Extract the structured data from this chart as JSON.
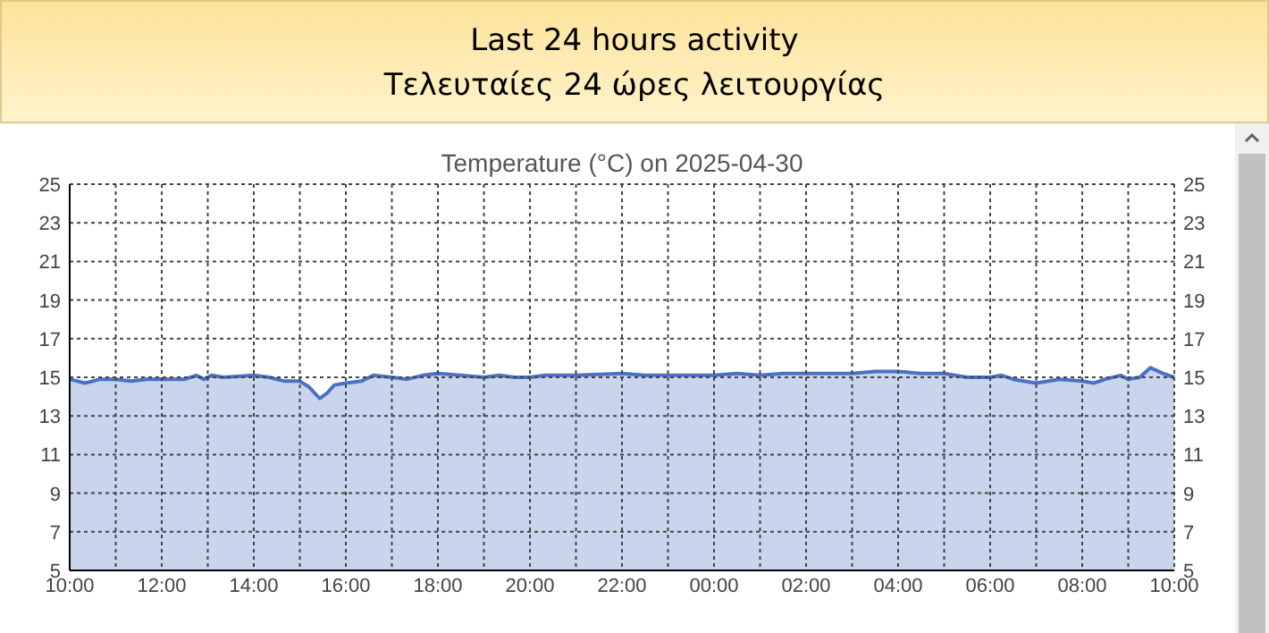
{
  "chart_data": {
    "type": "area",
    "title": "Last 24 hours activity",
    "subtitle": "Τελευταίες 24 ώρες λειτουργίας",
    "annotations": [
      "Temperature (°C) on 2025-04-30"
    ],
    "x": [
      "2025-04-29T10:00",
      "2025-04-29T10:20",
      "2025-04-29T10:40",
      "2025-04-29T11:00",
      "2025-04-29T11:20",
      "2025-04-29T11:40",
      "2025-04-29T12:00",
      "2025-04-29T12:30",
      "2025-04-29T12:45",
      "2025-04-29T12:55",
      "2025-04-29T13:05",
      "2025-04-29T13:20",
      "2025-04-29T14:00",
      "2025-04-29T14:20",
      "2025-04-29T14:40",
      "2025-04-29T15:00",
      "2025-04-29T15:12",
      "2025-04-29T15:26",
      "2025-04-29T15:36",
      "2025-04-29T15:45",
      "2025-04-29T16:00",
      "2025-04-29T16:20",
      "2025-04-29T16:36",
      "2025-04-29T17:00",
      "2025-04-29T17:20",
      "2025-04-29T17:40",
      "2025-04-29T18:00",
      "2025-04-29T18:30",
      "2025-04-29T19:00",
      "2025-04-29T19:20",
      "2025-04-29T19:40",
      "2025-04-29T20:00",
      "2025-04-29T20:20",
      "2025-04-29T21:00",
      "2025-04-29T22:00",
      "2025-04-29T22:30",
      "2025-04-29T23:00",
      "2025-04-29T23:30",
      "2025-04-30T00:00",
      "2025-04-30T00:30",
      "2025-04-30T01:00",
      "2025-04-30T01:30",
      "2025-04-30T02:00",
      "2025-04-30T03:00",
      "2025-04-30T03:30",
      "2025-04-30T04:00",
      "2025-04-30T04:30",
      "2025-04-30T05:00",
      "2025-04-30T05:30",
      "2025-04-30T06:00",
      "2025-04-30T06:15",
      "2025-04-30T06:30",
      "2025-04-30T07:00",
      "2025-04-30T07:30",
      "2025-04-30T08:00",
      "2025-04-30T08:15",
      "2025-04-30T08:30",
      "2025-04-30T08:50",
      "2025-04-30T09:00",
      "2025-04-30T09:15",
      "2025-04-30T09:29",
      "2025-04-30T09:45",
      "2025-04-30T10:00"
    ],
    "series": [
      {
        "color": "#4a72c4",
        "values": [
          14.9,
          14.7,
          14.9,
          14.9,
          14.8,
          14.9,
          14.9,
          14.9,
          15.1,
          14.9,
          15.1,
          15.0,
          15.1,
          15.0,
          14.8,
          14.8,
          14.5,
          13.9,
          14.2,
          14.6,
          14.7,
          14.8,
          15.1,
          15.0,
          14.9,
          15.1,
          15.2,
          15.1,
          15.0,
          15.1,
          15.0,
          15.0,
          15.1,
          15.1,
          15.2,
          15.1,
          15.1,
          15.1,
          15.1,
          15.2,
          15.1,
          15.2,
          15.2,
          15.2,
          15.3,
          15.3,
          15.2,
          15.2,
          15.0,
          15.0,
          15.1,
          14.9,
          14.7,
          14.9,
          14.8,
          14.7,
          14.9,
          15.1,
          14.9,
          15.0,
          15.5,
          15.2,
          15.0
        ]
      }
    ],
    "xlim": [
      "2025-04-29T10:00",
      "2025-04-30T10:00"
    ],
    "xticks": [
      {
        "value": "2025-04-29T10:00",
        "label": "10:00"
      },
      {
        "value": "2025-04-29T11:00",
        "label": null
      },
      {
        "value": "2025-04-29T12:00",
        "label": "12:00"
      },
      {
        "value": "2025-04-29T13:00",
        "label": null
      },
      {
        "value": "2025-04-29T14:00",
        "label": "14:00"
      },
      {
        "value": "2025-04-29T15:00",
        "label": null
      },
      {
        "value": "2025-04-29T16:00",
        "label": "16:00"
      },
      {
        "value": "2025-04-29T17:00",
        "label": null
      },
      {
        "value": "2025-04-29T18:00",
        "label": "18:00"
      },
      {
        "value": "2025-04-29T19:00",
        "label": null
      },
      {
        "value": "2025-04-29T20:00",
        "label": "20:00"
      },
      {
        "value": "2025-04-29T21:00",
        "label": null
      },
      {
        "value": "2025-04-29T22:00",
        "label": "22:00"
      },
      {
        "value": "2025-04-29T23:00",
        "label": null
      },
      {
        "value": "2025-04-30T00:00",
        "label": "00:00"
      },
      {
        "value": "2025-04-30T01:00",
        "label": null
      },
      {
        "value": "2025-04-30T02:00",
        "label": "02:00"
      },
      {
        "value": "2025-04-30T03:00",
        "label": null
      },
      {
        "value": "2025-04-30T04:00",
        "label": "04:00"
      },
      {
        "value": "2025-04-30T05:00",
        "label": null
      },
      {
        "value": "2025-04-30T06:00",
        "label": "06:00"
      },
      {
        "value": "2025-04-30T07:00",
        "label": null
      },
      {
        "value": "2025-04-30T08:00",
        "label": "08:00"
      },
      {
        "value": "2025-04-30T09:00",
        "label": null
      },
      {
        "value": "2025-04-30T10:00",
        "label": "10:00"
      }
    ],
    "ylim": [
      5,
      25
    ],
    "yticks": [
      5,
      7,
      9,
      11,
      13,
      15,
      17,
      19,
      21,
      23,
      25
    ],
    "y2lim": [
      5,
      25
    ],
    "y2ticks": [
      5,
      7,
      9,
      11,
      13,
      15,
      17,
      19,
      21,
      23,
      25
    ],
    "grid": true,
    "marker": "none",
    "line_style": "solid"
  }
}
